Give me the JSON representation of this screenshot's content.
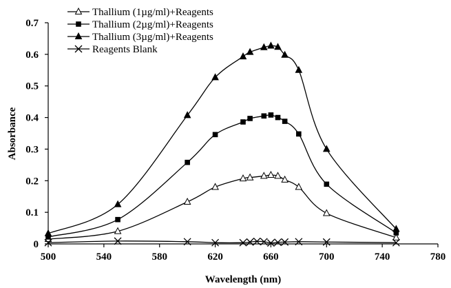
{
  "chart_data": {
    "type": "line",
    "xlabel": "Wavelength (nm)",
    "ylabel": "Absorbance",
    "xlim": [
      500,
      780
    ],
    "ylim": [
      0,
      0.7
    ],
    "x_ticks": [
      500,
      540,
      580,
      620,
      660,
      700,
      740,
      780
    ],
    "y_ticks": [
      0,
      0.1,
      0.2,
      0.3,
      0.4,
      0.5,
      0.6,
      0.7
    ],
    "legend_position": "top-left",
    "series": [
      {
        "name": "Thallium (1µg/ml)+Reagents",
        "marker": "open-triangle",
        "x": [
          500,
          550,
          600,
          620,
          640,
          645,
          655,
          660,
          665,
          670,
          680,
          700,
          750
        ],
        "y": [
          0.015,
          0.04,
          0.133,
          0.18,
          0.207,
          0.21,
          0.215,
          0.218,
          0.215,
          0.203,
          0.18,
          0.097,
          0.02
        ]
      },
      {
        "name": "Thallium (2µg/ml)+Reagents",
        "marker": "filled-square",
        "x": [
          500,
          550,
          600,
          620,
          640,
          645,
          655,
          660,
          665,
          670,
          680,
          700,
          750
        ],
        "y": [
          0.022,
          0.077,
          0.258,
          0.346,
          0.386,
          0.397,
          0.405,
          0.408,
          0.4,
          0.388,
          0.348,
          0.189,
          0.035
        ]
      },
      {
        "name": "Thallium (3µg/ml)+Reagents",
        "marker": "filled-triangle",
        "x": [
          500,
          550,
          600,
          620,
          640,
          645,
          655,
          660,
          665,
          670,
          680,
          700,
          750
        ],
        "y": [
          0.033,
          0.125,
          0.407,
          0.527,
          0.593,
          0.607,
          0.622,
          0.627,
          0.623,
          0.598,
          0.55,
          0.3,
          0.047
        ]
      },
      {
        "name": "Reagents Blank",
        "marker": "x",
        "x": [
          500,
          550,
          600,
          620,
          640,
          645,
          650,
          655,
          660,
          665,
          670,
          680,
          700,
          750
        ],
        "y": [
          0.004,
          0.009,
          0.007,
          0.004,
          0.004,
          0.006,
          0.008,
          0.007,
          0.003,
          0.005,
          0.006,
          0.007,
          0.006,
          0.004
        ]
      }
    ]
  }
}
